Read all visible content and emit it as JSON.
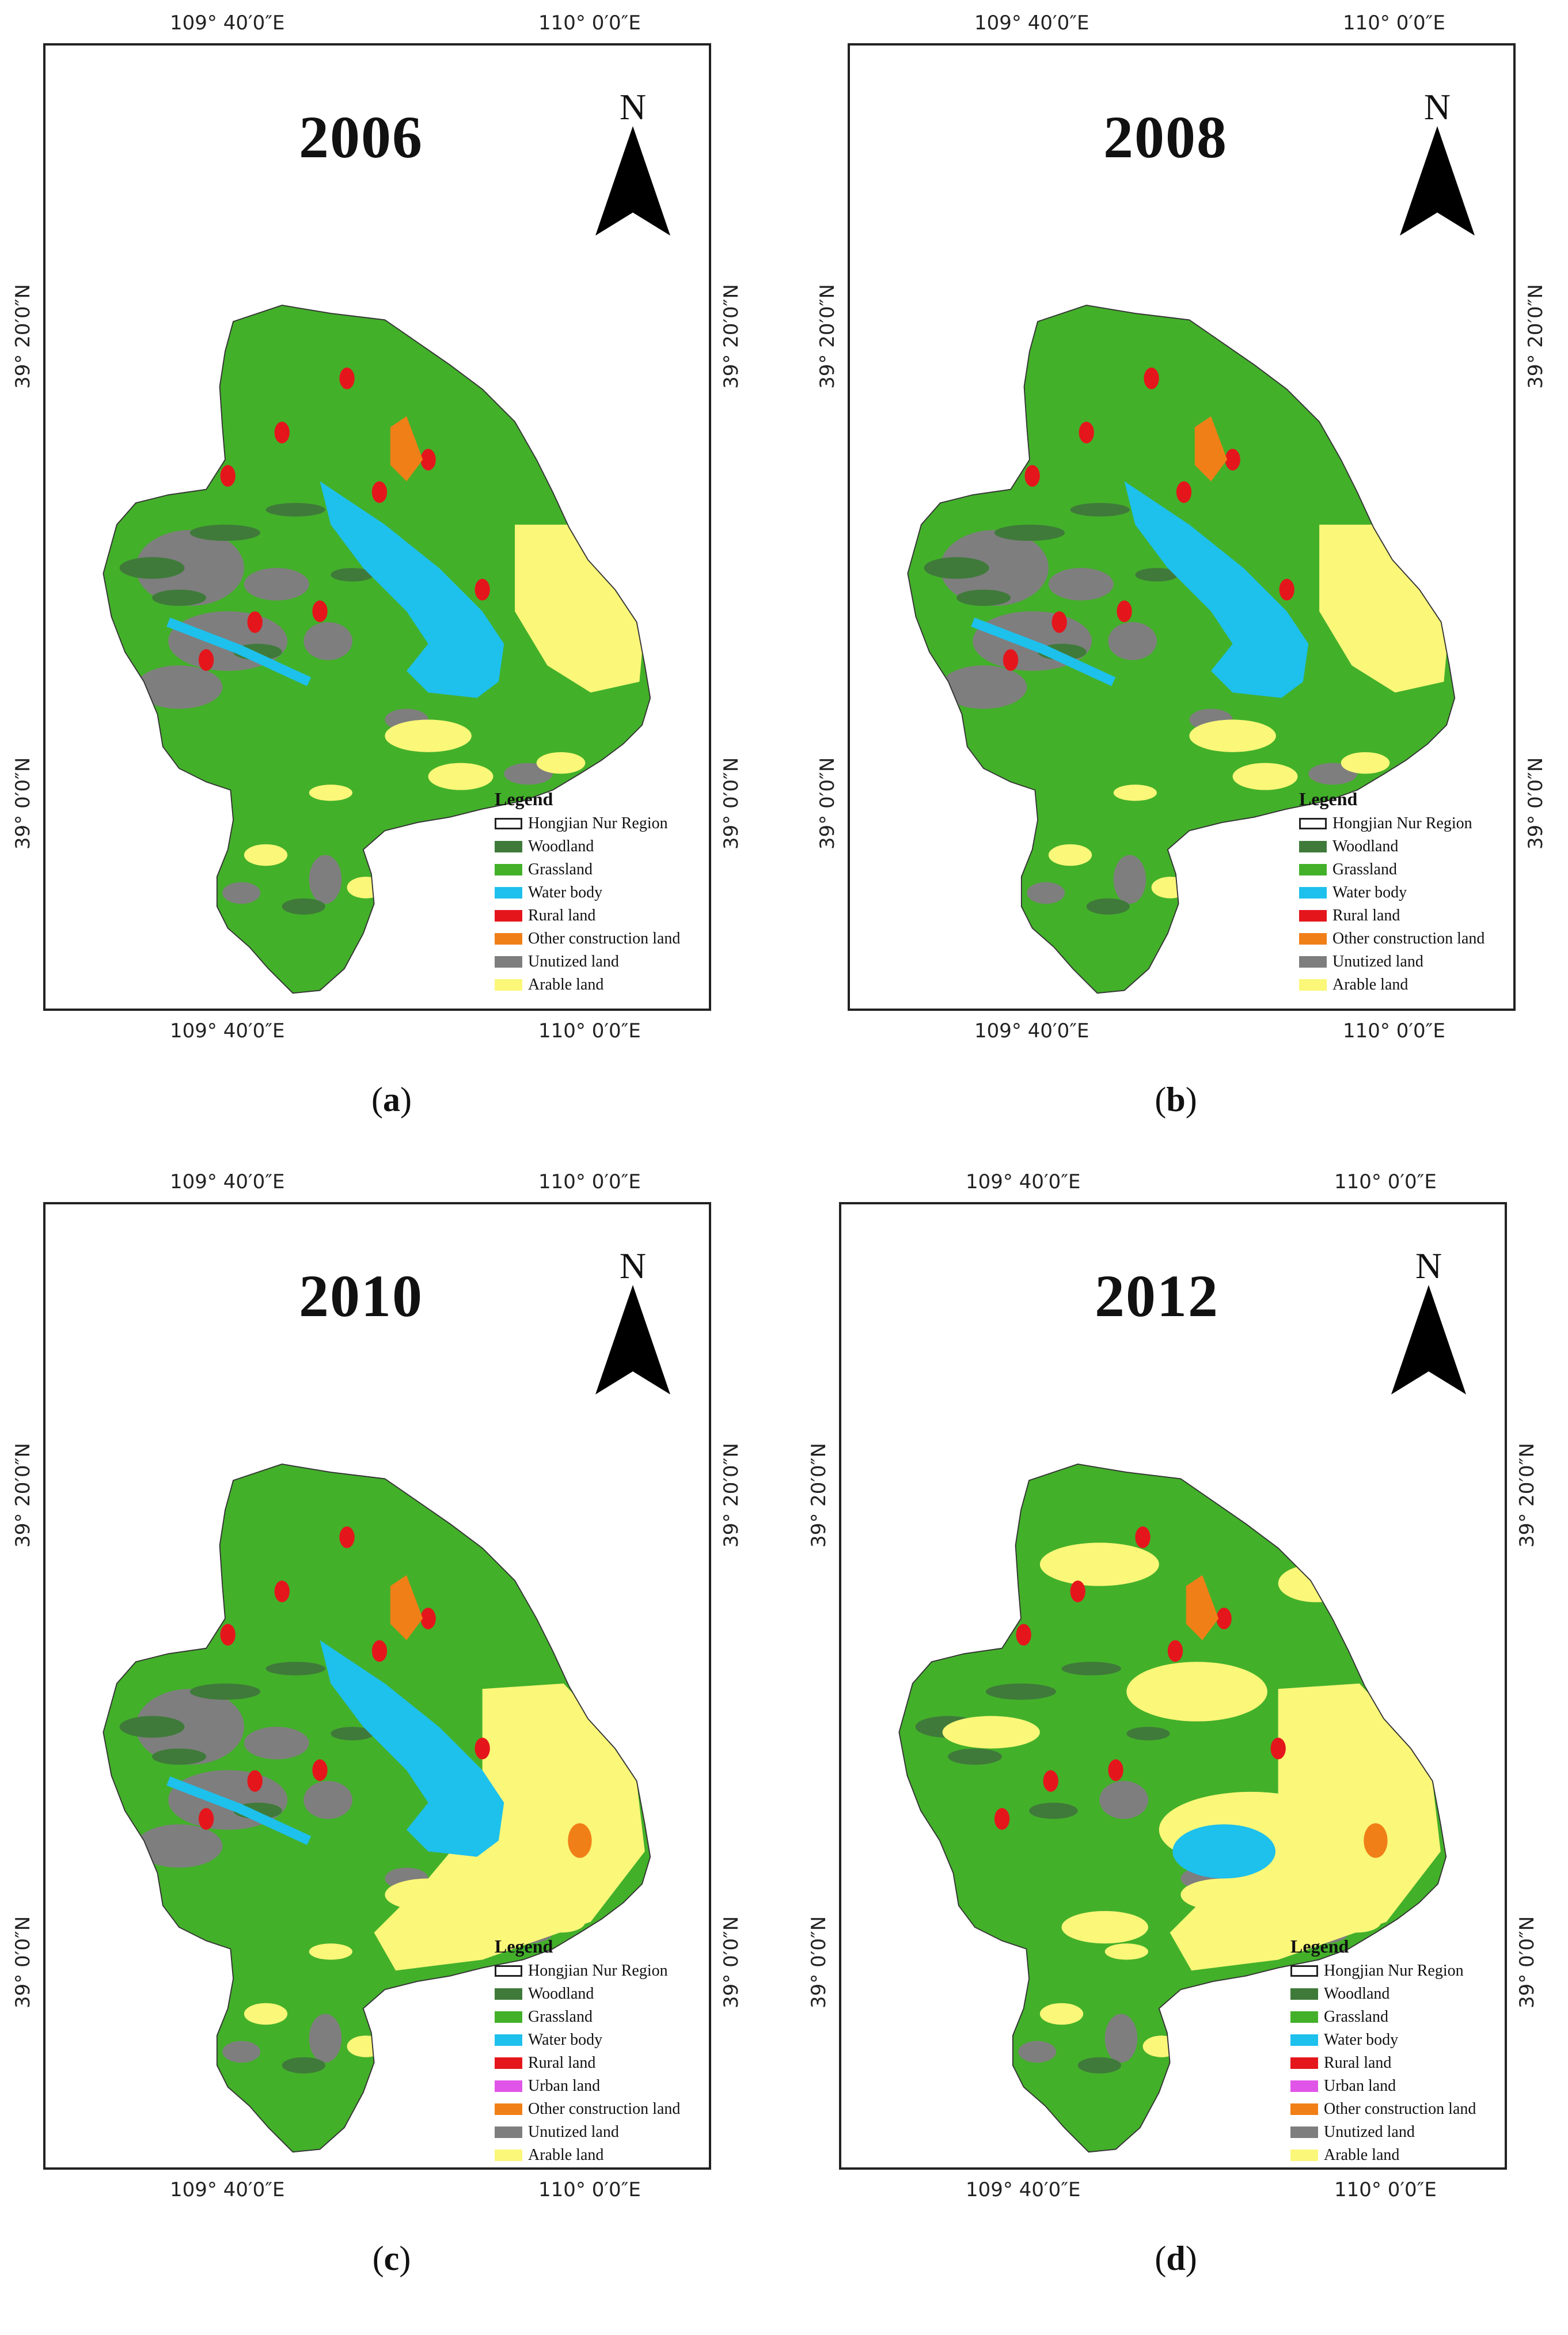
{
  "colors": {
    "region_fill": "#ffffff",
    "woodland": "#3f7a3a",
    "grassland": "#43b02a",
    "water_body": "#1ec0ec",
    "rural_land": "#e4161c",
    "urban_land": "#e055e8",
    "other_construction_land": "#f07f17",
    "unutilized_land": "#7e7e7e",
    "arable_land": "#fbf779"
  },
  "panels": [
    {
      "caption_open": "(",
      "caption_letter": "a",
      "caption_close": ")",
      "year": "2006",
      "north": "N",
      "coords": {
        "top_left": "109° 40′0″E",
        "top_right": "110° 0′0″E",
        "bottom_left": "109° 40′0″E",
        "bottom_right": "110° 0′0″E",
        "left_upper": "39° 20′0″N",
        "left_lower": "39° 0′0″N",
        "right_upper": "39° 20′0″N",
        "right_lower": "39° 0′0″N"
      },
      "legend": {
        "title": "Legend",
        "items": [
          {
            "label": "Hongjian Nur Region",
            "key": "region"
          },
          {
            "label": "Woodland",
            "key": "woodland"
          },
          {
            "label": "Grassland",
            "key": "grassland"
          },
          {
            "label": "Water body",
            "key": "water_body"
          },
          {
            "label": "Rural land",
            "key": "rural_land"
          },
          {
            "label": "Other construction land",
            "key": "other_construction_land"
          },
          {
            "label": "Unutized land",
            "key": "unutilized_land"
          },
          {
            "label": "Arable land",
            "key": "arable_land"
          }
        ]
      }
    },
    {
      "caption_open": "(",
      "caption_letter": "b",
      "caption_close": ")",
      "year": "2008",
      "north": "N",
      "coords": {
        "top_left": "109° 40′0″E",
        "top_right": "110° 0′0″E",
        "bottom_left": "109° 40′0″E",
        "bottom_right": "110° 0′0″E",
        "left_upper": "39° 20′0″N",
        "left_lower": "39° 0′0″N",
        "right_upper": "39° 20′0″N",
        "right_lower": "39° 0′0″N"
      },
      "legend": {
        "title": "Legend",
        "items": [
          {
            "label": "Hongjian Nur Region",
            "key": "region"
          },
          {
            "label": "Woodland",
            "key": "woodland"
          },
          {
            "label": "Grassland",
            "key": "grassland"
          },
          {
            "label": "Water body",
            "key": "water_body"
          },
          {
            "label": "Rural land",
            "key": "rural_land"
          },
          {
            "label": "Other construction land",
            "key": "other_construction_land"
          },
          {
            "label": "Unutized land",
            "key": "unutilized_land"
          },
          {
            "label": "Arable land",
            "key": "arable_land"
          }
        ]
      }
    },
    {
      "caption_open": "(",
      "caption_letter": "c",
      "caption_close": ")",
      "year": "2010",
      "north": "N",
      "coords": {
        "top_left": "109° 40′0″E",
        "top_right": "110° 0′0″E",
        "bottom_left": "109° 40′0″E",
        "bottom_right": "110° 0′0″E",
        "left_upper": "39° 20′0″N",
        "left_lower": "39° 0′0″N",
        "right_upper": "39° 20′0″N",
        "right_lower": "39° 0′0″N"
      },
      "legend": {
        "title": "Legend",
        "items": [
          {
            "label": "Hongjian Nur Region",
            "key": "region"
          },
          {
            "label": "Woodland",
            "key": "woodland"
          },
          {
            "label": "Grassland",
            "key": "grassland"
          },
          {
            "label": "Water body",
            "key": "water_body"
          },
          {
            "label": "Rural land",
            "key": "rural_land"
          },
          {
            "label": "Urban land",
            "key": "urban_land"
          },
          {
            "label": "Other construction land",
            "key": "other_construction_land"
          },
          {
            "label": "Unutized land",
            "key": "unutilized_land"
          },
          {
            "label": "Arable land",
            "key": "arable_land"
          }
        ]
      }
    },
    {
      "caption_open": "(",
      "caption_letter": "d",
      "caption_close": ")",
      "year": "2012",
      "north": "N",
      "coords": {
        "top_left": "109° 40′0″E",
        "top_right": "110° 0′0″E",
        "bottom_left": "109° 40′0″E",
        "bottom_right": "110° 0′0″E",
        "left_upper": "39° 20′0″N",
        "left_lower": "39° 0′0″N",
        "right_upper": "39° 20′0″N",
        "right_lower": "39° 0′0″N"
      },
      "legend": {
        "title": "Legend",
        "items": [
          {
            "label": "Hongjian Nur Region",
            "key": "region"
          },
          {
            "label": "Woodland",
            "key": "woodland"
          },
          {
            "label": "Grassland",
            "key": "grassland"
          },
          {
            "label": "Water body",
            "key": "water_body"
          },
          {
            "label": "Rural land",
            "key": "rural_land"
          },
          {
            "label": "Urban land",
            "key": "urban_land"
          },
          {
            "label": "Other construction land",
            "key": "other_construction_land"
          },
          {
            "label": "Unutized land",
            "key": "unutilized_land"
          },
          {
            "label": "Arable land",
            "key": "arable_land"
          }
        ]
      }
    }
  ]
}
